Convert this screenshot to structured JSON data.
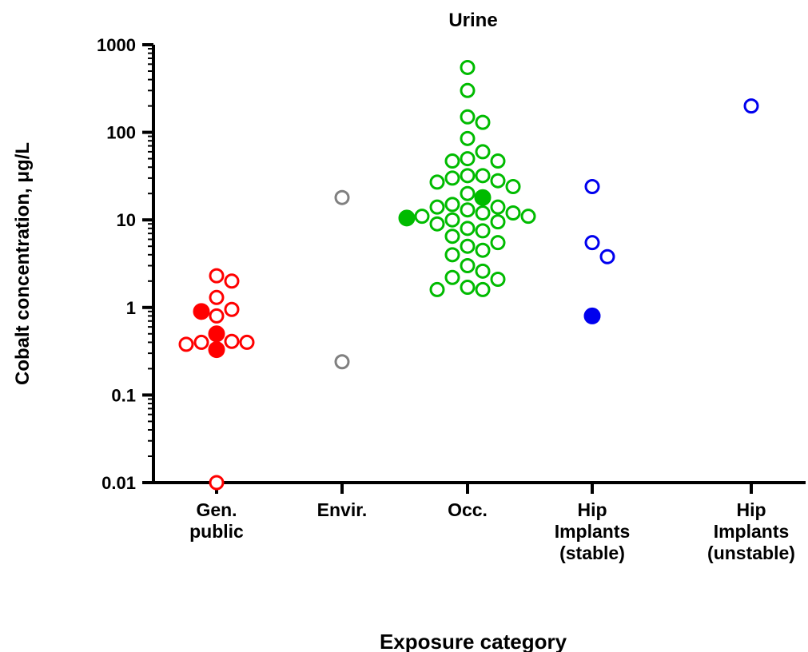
{
  "chart_data": {
    "type": "scatter",
    "title": "Urine",
    "xlabel": "Exposure category",
    "ylabel": "Cobalt concentration, μg/L",
    "yscale": "log",
    "ylim": [
      0.01,
      1000
    ],
    "yticks": [
      "0.01",
      "0.1",
      "1",
      "10",
      "100",
      "1000"
    ],
    "grid": false,
    "categories": [
      {
        "key": "gen",
        "lines": [
          "Gen.",
          "public"
        ],
        "color": "#ff0000"
      },
      {
        "key": "env",
        "lines": [
          "Envir."
        ],
        "color": "#808080"
      },
      {
        "key": "occ",
        "lines": [
          "Occ."
        ],
        "color": "#00bb00"
      },
      {
        "key": "hips",
        "lines": [
          "Hip",
          "Implants",
          "(stable)"
        ],
        "color": "#0000ee"
      },
      {
        "key": "hipu",
        "lines": [
          "Hip",
          "Implants",
          "(unstable)"
        ],
        "color": "#0000ee"
      }
    ],
    "series": [
      {
        "category": "gen",
        "open": [
          2.3,
          2.0,
          1.3,
          0.95,
          0.8,
          0.4,
          0.38,
          0.4,
          0.41,
          0.01
        ],
        "filled": [
          0.9,
          0.5,
          0.33
        ]
      },
      {
        "category": "env",
        "open": [
          18,
          0.24
        ],
        "filled": []
      },
      {
        "category": "occ",
        "open": [
          550,
          300,
          150,
          130,
          85,
          60,
          50,
          47,
          47,
          32,
          32,
          30,
          28,
          27,
          24,
          20,
          15,
          14,
          14,
          13,
          12,
          12,
          11,
          11,
          10,
          9.5,
          9,
          8,
          7.5,
          6.5,
          5.5,
          5,
          4.5,
          4,
          3,
          2.6,
          2.2,
          2.1,
          1.7,
          1.6,
          1.6
        ],
        "filled": [
          18,
          10.5
        ]
      },
      {
        "category": "hips",
        "open": [
          24,
          5.5,
          3.8
        ],
        "filled": [
          0.8
        ]
      },
      {
        "category": "hipu",
        "open": [
          200
        ],
        "filled": []
      }
    ]
  }
}
